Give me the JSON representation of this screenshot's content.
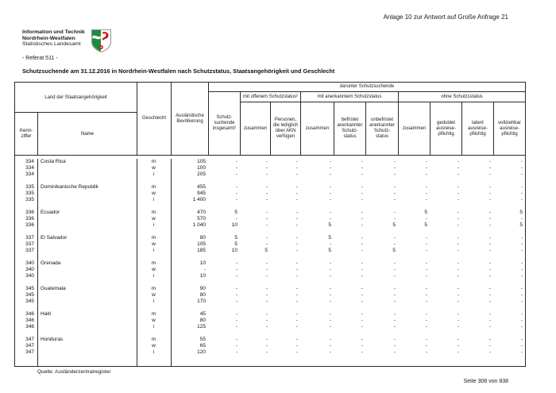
{
  "page": {
    "annotation_top_right": "Anlage 10 zur Antwort auf Große Anfrage 21",
    "agency": {
      "line1": "Information und Technik",
      "line2": "Nordrhein-Westfalen",
      "line3": "Statistisches Landesamt"
    },
    "referat": "- Referat 511 -",
    "title": "Schutzsuchende am 31.12.2016 in Nordrhein-Westfalen nach Schutzstatus, Staatsangehörigkeit und Geschlecht",
    "source_note": "Quelle: Ausländerzentralregister",
    "page_indicator": "Seite 308 von 838",
    "logo_colors": {
      "green": "#1e8a3c",
      "red": "#d01317"
    }
  },
  "table": {
    "header": {
      "land": "Land der Staatsangehörigkeit",
      "kennziffer": "Kenn-\nziffer",
      "name": "Name",
      "geschlecht": "Geschlecht",
      "auslaendische_bevoelkerung": "Ausländische\nBevölkerung",
      "schutzsuchende_insgesamt": "Schutz-\nsuchende\ninsgesamt¹",
      "darunter": "darunter Schutzsuchende",
      "mit_offenem_schutzstatus": "mit offenem Schutzstatus²",
      "mit_anerkanntem_schutzstatus": "mit anerkanntem Schutzstatus",
      "ohne_schutzstatus": "ohne Schutzsstatus",
      "zusammen_offen": "zusammen",
      "akn": "Personen,\ndie lediglich\nüber AKN\nverfügen",
      "zusammen_anerkannt": "zusammen",
      "befristet": "befristet\nanerkannter\nSchutz-\nstatus",
      "unbefristet": "unbefristet\nanerkannter\nSchutz-\nstatus",
      "zusammen_ohne": "zusammen",
      "geduldet": "geduldet\nausreise-\npflichtig",
      "latent": "latent\nausreise-\npflichtig",
      "vollziehbar": "vollziehbar\nausreise-\npflichtig"
    },
    "groups": [
      {
        "kennziffer": "334",
        "name": "Costa Rica",
        "rows": [
          {
            "geschlecht": "m",
            "values": [
              "105",
              "-",
              "-",
              "-",
              "-",
              "-",
              "-",
              "-",
              "-",
              "-",
              "-"
            ]
          },
          {
            "geschlecht": "w",
            "values": [
              "100",
              "-",
              "-",
              "-",
              "-",
              "-",
              "-",
              "-",
              "-",
              "-",
              "-"
            ]
          },
          {
            "geschlecht": "i",
            "values": [
              "205",
              "-",
              "-",
              "-",
              "-",
              "-",
              "-",
              "-",
              "-",
              "-",
              "-"
            ]
          }
        ]
      },
      {
        "kennziffer": "335",
        "name": "Dominikanische Republik",
        "rows": [
          {
            "geschlecht": "m",
            "values": [
              "455",
              "-",
              "-",
              "-",
              "-",
              "-",
              "-",
              "-",
              "-",
              "-",
              "-"
            ]
          },
          {
            "geschlecht": "w",
            "values": [
              "945",
              "-",
              "-",
              "-",
              "-",
              "-",
              "-",
              "-",
              "-",
              "-",
              "-"
            ]
          },
          {
            "geschlecht": "i",
            "values": [
              "1 400",
              "-",
              "-",
              "-",
              "-",
              "-",
              "-",
              "-",
              "-",
              "-",
              "-"
            ]
          }
        ]
      },
      {
        "kennziffer": "336",
        "name": "Ecuador",
        "rows": [
          {
            "geschlecht": "m",
            "values": [
              "470",
              "5",
              "-",
              "-",
              "-",
              "-",
              "-",
              "5",
              "-",
              "-",
              "5"
            ]
          },
          {
            "geschlecht": "w",
            "values": [
              "570",
              "-",
              "-",
              "-",
              "-",
              "-",
              "-",
              "-",
              "-",
              "-",
              "-"
            ]
          },
          {
            "geschlecht": "i",
            "values": [
              "1 040",
              "10",
              "-",
              "-",
              "5",
              "-",
              "5",
              "5",
              "-",
              "-",
              "5"
            ]
          }
        ]
      },
      {
        "kennziffer": "337",
        "name": "El Salvador",
        "rows": [
          {
            "geschlecht": "m",
            "values": [
              "80",
              "5",
              "-",
              "-",
              "5",
              "-",
              "-",
              "-",
              "-",
              "-",
              "-"
            ]
          },
          {
            "geschlecht": "w",
            "values": [
              "105",
              "5",
              "-",
              "-",
              "-",
              "-",
              "-",
              "-",
              "-",
              "-",
              "-"
            ]
          },
          {
            "geschlecht": "i",
            "values": [
              "185",
              "10",
              "5",
              "-",
              "5",
              "-",
              "5",
              "-",
              "-",
              "-",
              "-"
            ]
          }
        ]
      },
      {
        "kennziffer": "340",
        "name": "Grenada",
        "rows": [
          {
            "geschlecht": "m",
            "values": [
              "10",
              "-",
              "-",
              "-",
              "-",
              "-",
              "-",
              "-",
              "-",
              "-",
              "-"
            ]
          },
          {
            "geschlecht": "w",
            "values": [
              "-",
              "-",
              "-",
              "-",
              "-",
              "-",
              "-",
              "-",
              "-",
              "-",
              "-"
            ]
          },
          {
            "geschlecht": "i",
            "values": [
              "10",
              "-",
              "-",
              "-",
              "-",
              "-",
              "-",
              "-",
              "-",
              "-",
              "-"
            ]
          }
        ]
      },
      {
        "kennziffer": "345",
        "name": "Guatemala",
        "rows": [
          {
            "geschlecht": "m",
            "values": [
              "90",
              "-",
              "-",
              "-",
              "-",
              "-",
              "-",
              "-",
              "-",
              "-",
              "-"
            ]
          },
          {
            "geschlecht": "w",
            "values": [
              "80",
              "-",
              "-",
              "-",
              "-",
              "-",
              "-",
              "-",
              "-",
              "-",
              "-"
            ]
          },
          {
            "geschlecht": "i",
            "values": [
              "170",
              "-",
              "-",
              "-",
              "-",
              "-",
              "-",
              "-",
              "-",
              "-",
              "-"
            ]
          }
        ]
      },
      {
        "kennziffer": "346",
        "name": "Haiti",
        "rows": [
          {
            "geschlecht": "m",
            "values": [
              "45",
              "-",
              "-",
              "-",
              "-",
              "-",
              "-",
              "-",
              "-",
              "-",
              "-"
            ]
          },
          {
            "geschlecht": "w",
            "values": [
              "80",
              "-",
              "-",
              "-",
              "-",
              "-",
              "-",
              "-",
              "-",
              "-",
              "-"
            ]
          },
          {
            "geschlecht": "i",
            "values": [
              "125",
              "-",
              "-",
              "-",
              "-",
              "-",
              "-",
              "-",
              "-",
              "-",
              "-"
            ]
          }
        ]
      },
      {
        "kennziffer": "347",
        "name": "Honduras",
        "rows": [
          {
            "geschlecht": "m",
            "values": [
              "55",
              "-",
              "-",
              "-",
              "-",
              "-",
              "-",
              "-",
              "-",
              "-",
              "-"
            ]
          },
          {
            "geschlecht": "w",
            "values": [
              "65",
              "-",
              "-",
              "-",
              "-",
              "-",
              "-",
              "-",
              "-",
              "-",
              "-"
            ]
          },
          {
            "geschlecht": "i",
            "values": [
              "120",
              "-",
              "-",
              "-",
              "-",
              "-",
              "-",
              "-",
              "-",
              "-",
              "-"
            ]
          }
        ]
      }
    ]
  }
}
